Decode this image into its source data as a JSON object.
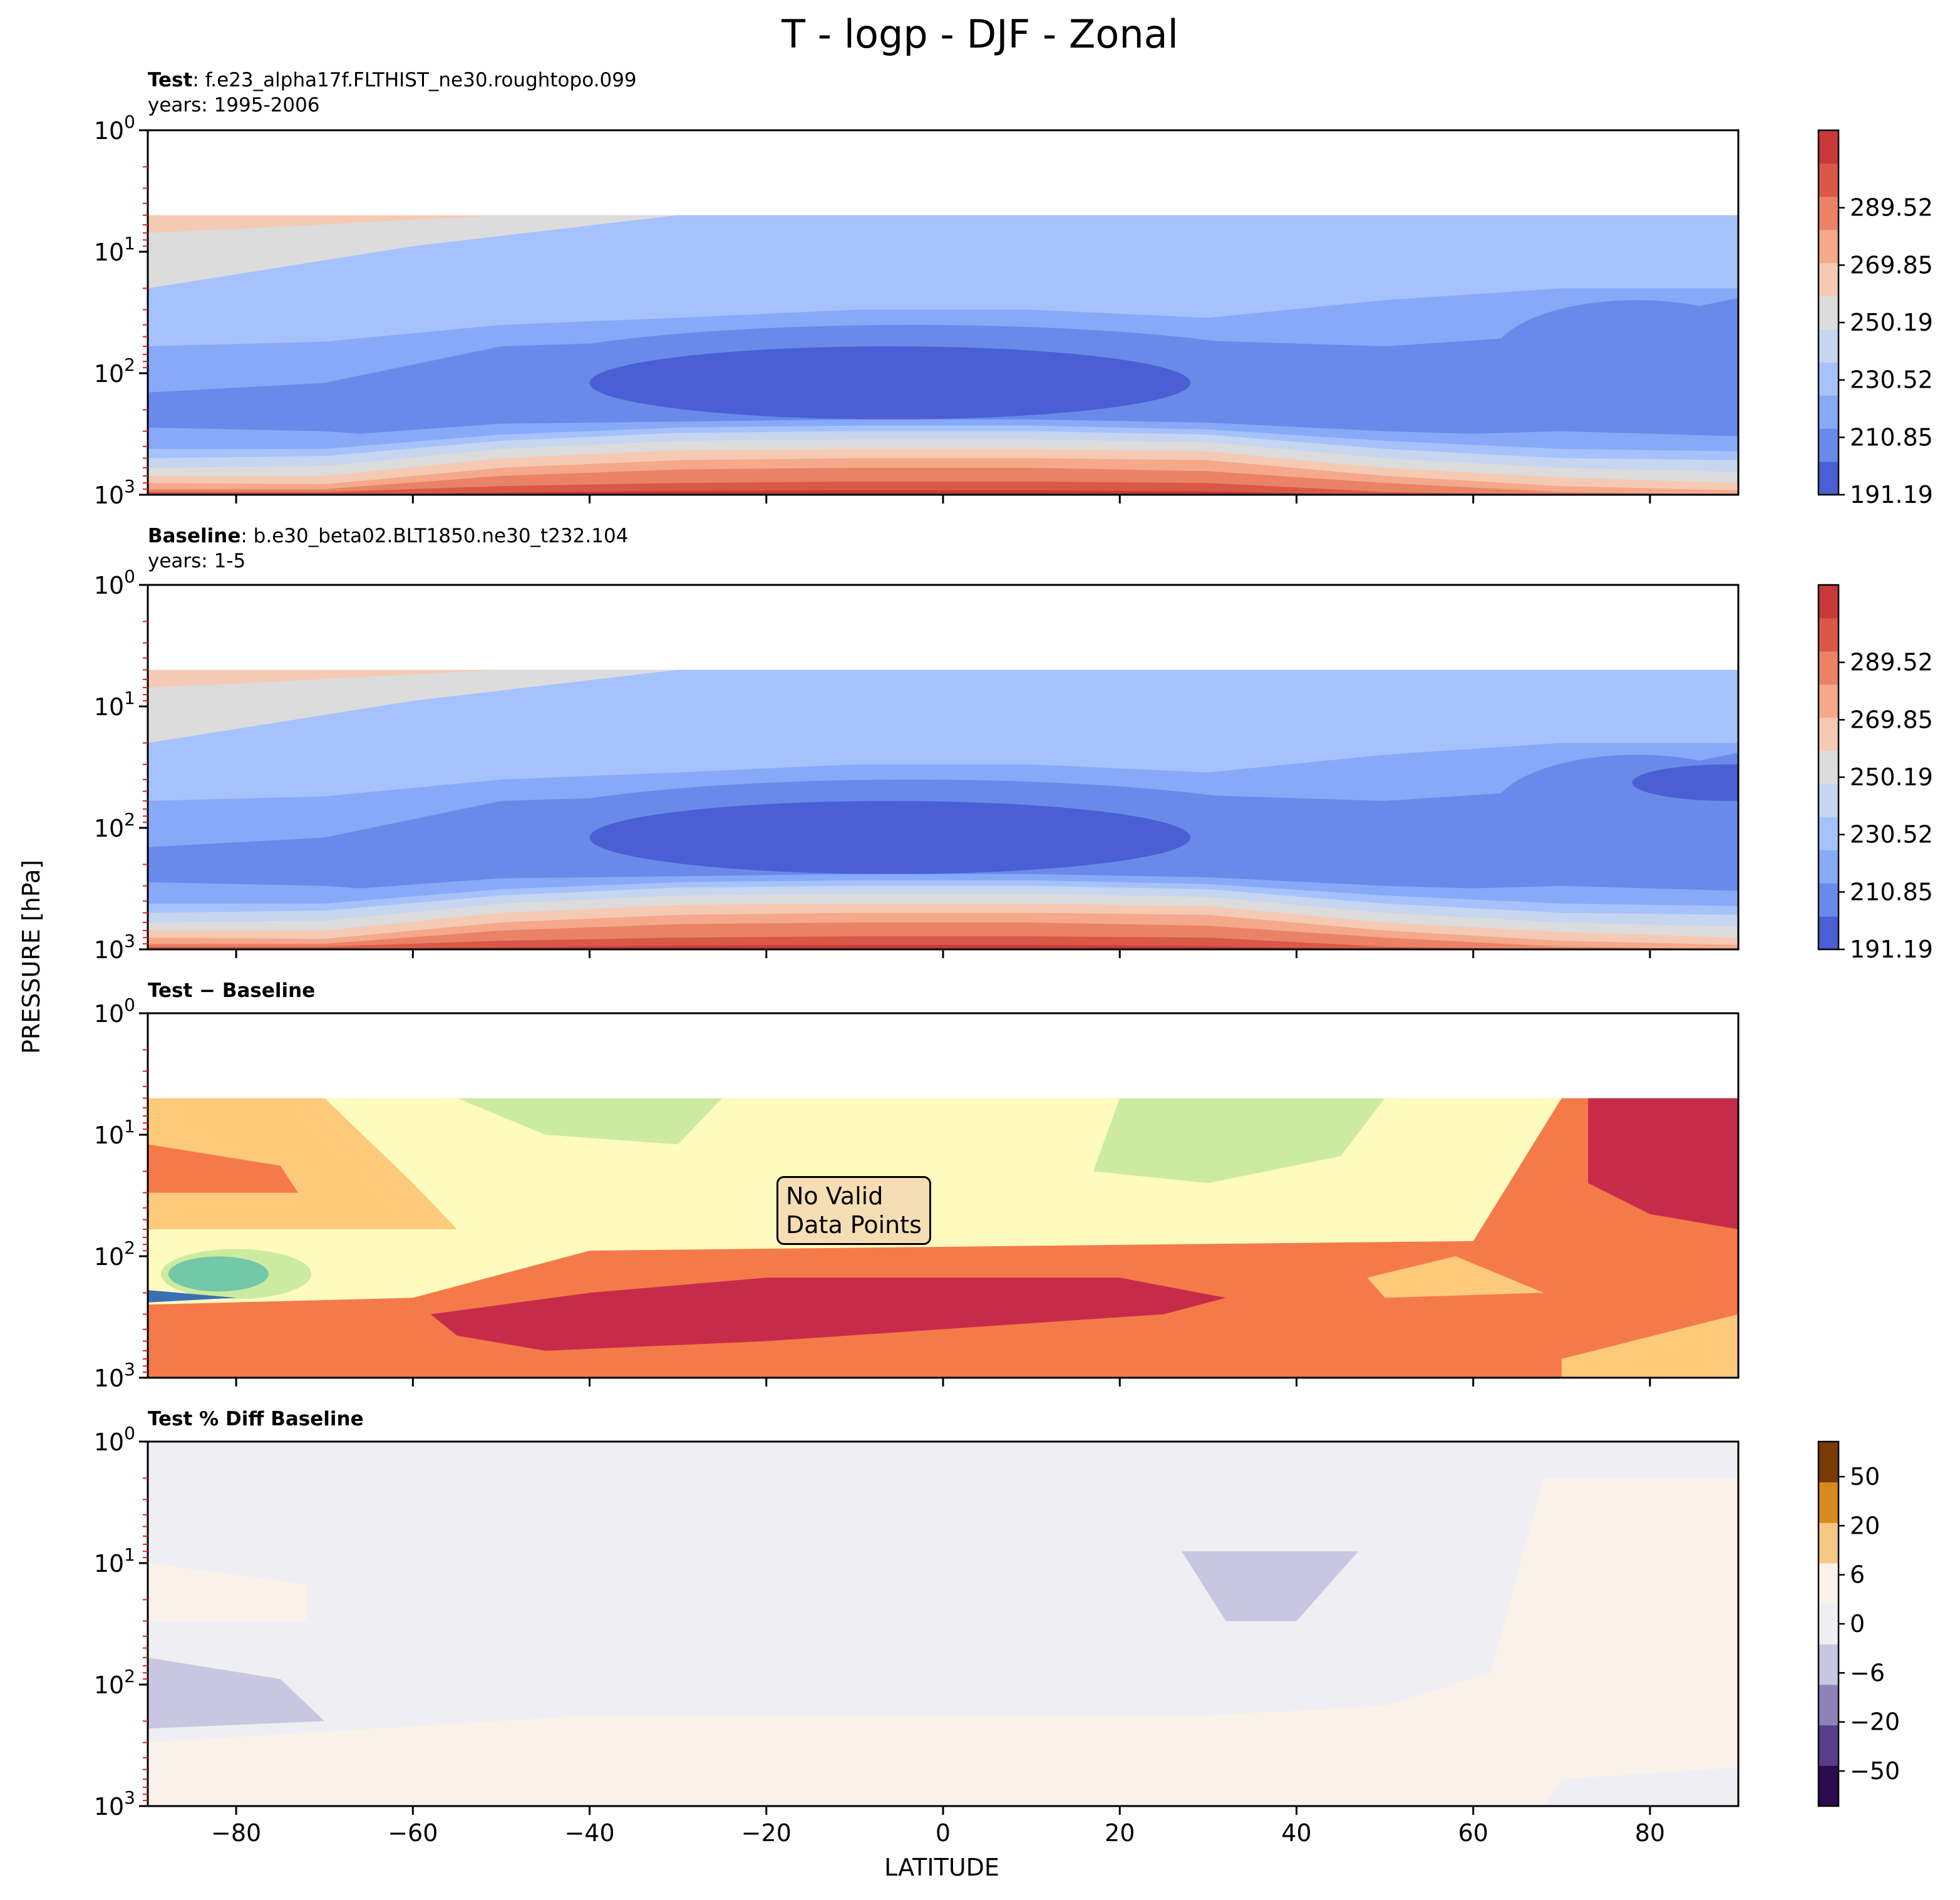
{
  "figure": {
    "suptitle": "T - logp - DJF - Zonal",
    "ylabel": "PRESSURE [hPa]",
    "xlabel": "LATITUDE",
    "no_data_line1": "No Valid",
    "no_data_line2": "Data Points"
  },
  "panels": [
    {
      "bold": "Test",
      "rest": ": f.e23_alpha17f.FLTHIST_ne30.roughtopo.099",
      "years": "years: 1995-2006"
    },
    {
      "bold": "Baseline",
      "rest": ": b.e30_beta02.BLT1850.ne30_t232.104",
      "years": "years: 1-5"
    },
    {
      "bold": "Test − Baseline",
      "rest": "",
      "years": ""
    },
    {
      "bold": "Test % Diff Baseline",
      "rest": "",
      "years": ""
    }
  ],
  "chart_data": [
    {
      "type": "heatmap",
      "title": "Test",
      "xlabel": "LATITUDE",
      "ylabel": "PRESSURE [hPa]",
      "x": [
        -80,
        -60,
        -40,
        -20,
        0,
        20,
        40,
        60,
        80
      ],
      "xlim": [
        -90,
        90
      ],
      "ylim": [
        1000,
        1
      ],
      "yscale": "log",
      "ytick_labels": [
        "10^0",
        "10^1",
        "10^2",
        "10^3"
      ],
      "colorbar_ticks": [
        "191.19",
        "210.85",
        "230.52",
        "250.19",
        "269.85",
        "289.52"
      ]
    },
    {
      "type": "heatmap",
      "title": "Baseline",
      "xlabel": "LATITUDE",
      "ylabel": "PRESSURE [hPa]",
      "x": [
        -80,
        -60,
        -40,
        -20,
        0,
        20,
        40,
        60,
        80
      ],
      "xlim": [
        -90,
        90
      ],
      "ylim": [
        1000,
        1
      ],
      "yscale": "log",
      "ytick_labels": [
        "10^0",
        "10^1",
        "10^2",
        "10^3"
      ],
      "colorbar_ticks": [
        "191.19",
        "210.85",
        "230.52",
        "250.19",
        "269.85",
        "289.52"
      ]
    },
    {
      "type": "heatmap",
      "title": "Test − Baseline",
      "annotation": "No Valid Data Points",
      "xlim": [
        -90,
        90
      ],
      "ylim": [
        1000,
        1
      ],
      "yscale": "log"
    },
    {
      "type": "heatmap",
      "title": "Test % Diff Baseline",
      "x_tick_labels": [
        "−80",
        "−60",
        "−40",
        "−20",
        "0",
        "20",
        "40",
        "60",
        "80"
      ],
      "xlim": [
        -90,
        90
      ],
      "ylim": [
        1000,
        1
      ],
      "yscale": "log",
      "colorbar_ticks": [
        "50",
        "20",
        "6",
        "0",
        "−6",
        "−20",
        "−50"
      ]
    }
  ],
  "colors": {
    "temp_levels": [
      "#4a5fd4",
      "#6a8aea",
      "#88a9f8",
      "#a6c2fc",
      "#c6d5f0",
      "#dcdcdc",
      "#f4cab4",
      "#f5a88a",
      "#ea8366",
      "#d95848",
      "#c83a3a"
    ],
    "diff_levels": [
      "#3a6fb4",
      "#72c8a8",
      "#cdeba0",
      "#fefbbe",
      "#fdc97a",
      "#f57a4a",
      "#c62c4a"
    ],
    "pct_levels": [
      "#2d0a4e",
      "#5a3d8a",
      "#8e82b8",
      "#c8c6e0",
      "#efeff3",
      "#faf2e8",
      "#f7c884",
      "#d98a1e",
      "#7a3a06"
    ]
  }
}
